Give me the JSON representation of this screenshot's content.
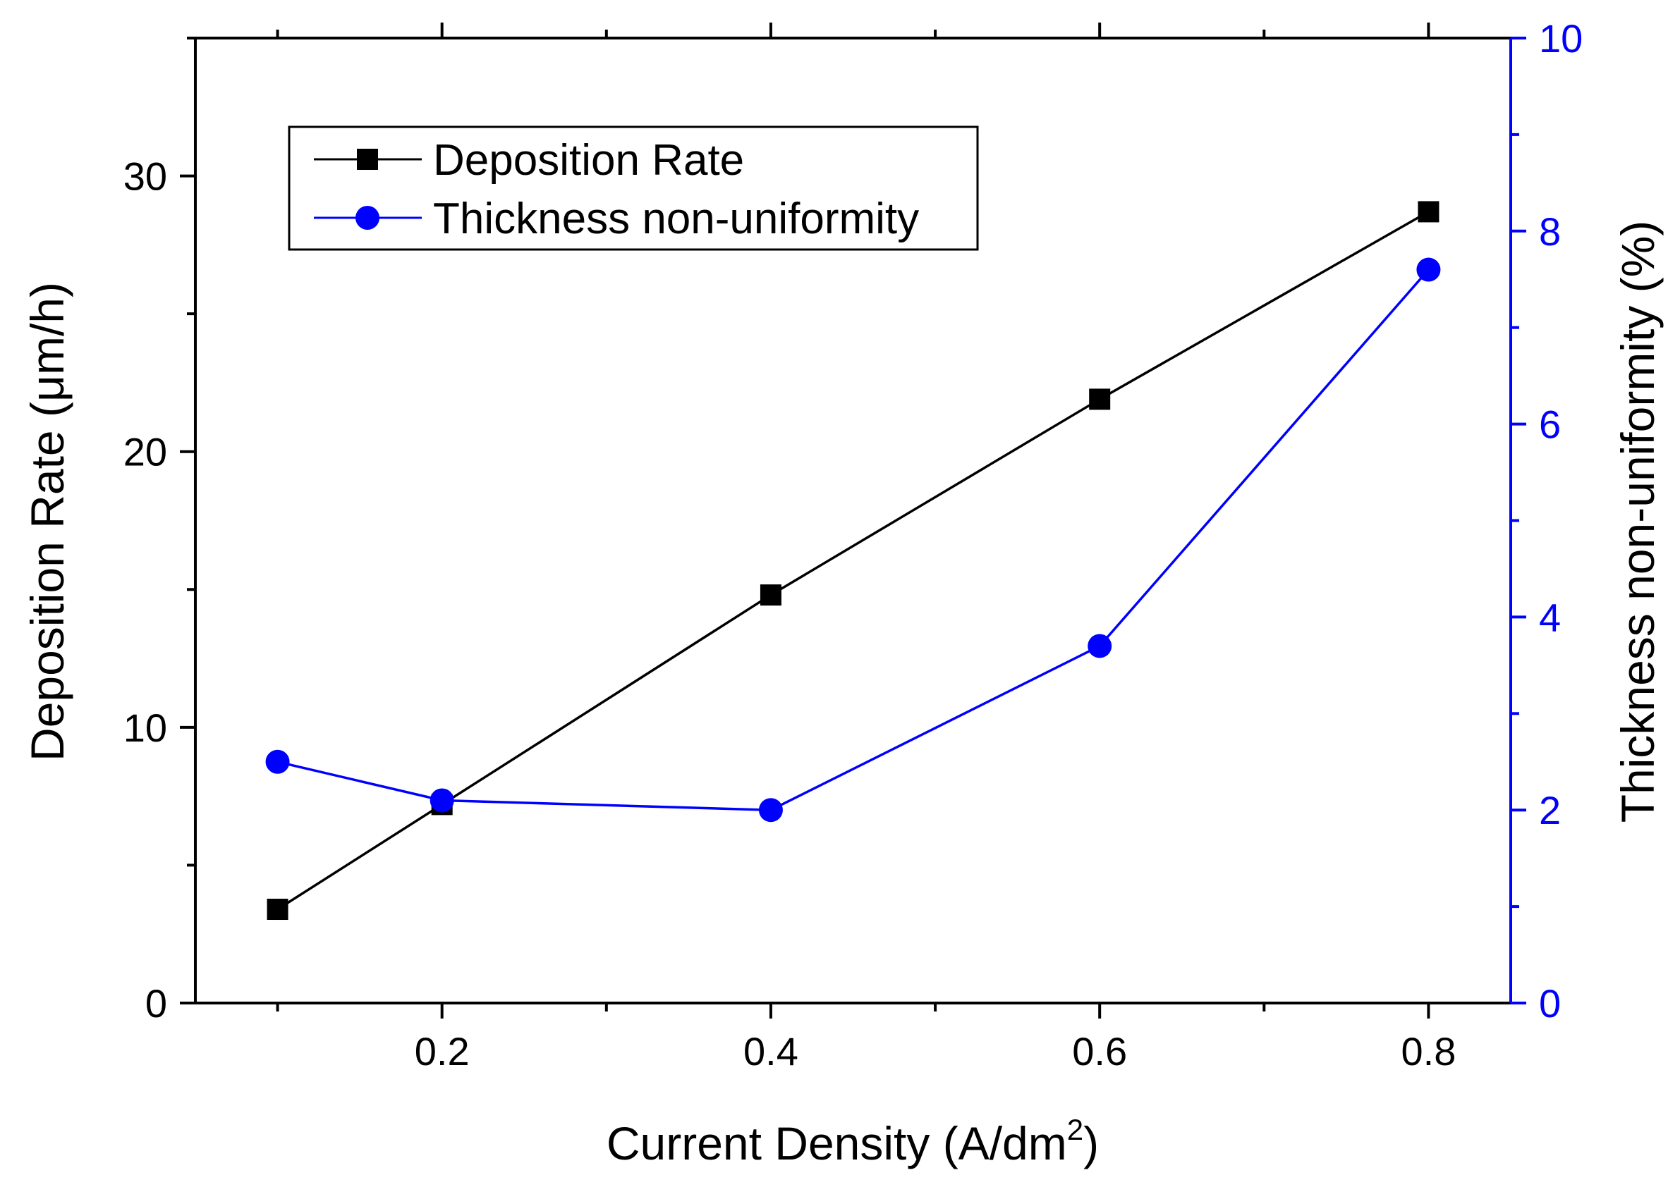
{
  "chart_data": {
    "type": "line",
    "x": [
      0.1,
      0.2,
      0.4,
      0.6,
      0.8
    ],
    "xlabel": "Current Density (A/dm",
    "xlabel_sup": "2",
    "xlabel_close": ")",
    "xlim": [
      0.05,
      0.85
    ],
    "xticks": [
      0.2,
      0.4,
      0.6,
      0.8
    ],
    "xtick_labels": [
      "0.2",
      "0.4",
      "0.6",
      "0.8"
    ],
    "series": [
      {
        "name": "Deposition Rate",
        "axis": "left",
        "marker": "square",
        "color": "#000000",
        "values": [
          3.4,
          7.2,
          14.8,
          21.9,
          28.7
        ]
      },
      {
        "name": "Thickness non-uniformity",
        "axis": "right",
        "marker": "circle",
        "color": "#0000FF",
        "values": [
          2.5,
          2.1,
          2.0,
          3.7,
          7.6
        ]
      }
    ],
    "y_left": {
      "label": "Deposition Rate (μm/h)",
      "lim": [
        0,
        35
      ],
      "ticks": [
        0,
        10,
        20,
        30
      ],
      "tick_labels": [
        "0",
        "10",
        "20",
        "30"
      ],
      "minor_ticks": [
        5,
        15,
        25,
        35
      ],
      "color": "#000000"
    },
    "y_right": {
      "label": "Thickness non-uniformity (%)",
      "lim": [
        0,
        10
      ],
      "ticks": [
        0,
        2,
        4,
        6,
        8,
        10
      ],
      "tick_labels": [
        "0",
        "2",
        "4",
        "6",
        "8",
        "10"
      ],
      "minor_ticks": [
        1,
        3,
        5,
        7,
        9
      ],
      "color": "#0000FF"
    },
    "legend": {
      "location": "top-left",
      "entries": [
        "Deposition Rate",
        "Thickness non-uniformity"
      ]
    },
    "grid": false
  }
}
